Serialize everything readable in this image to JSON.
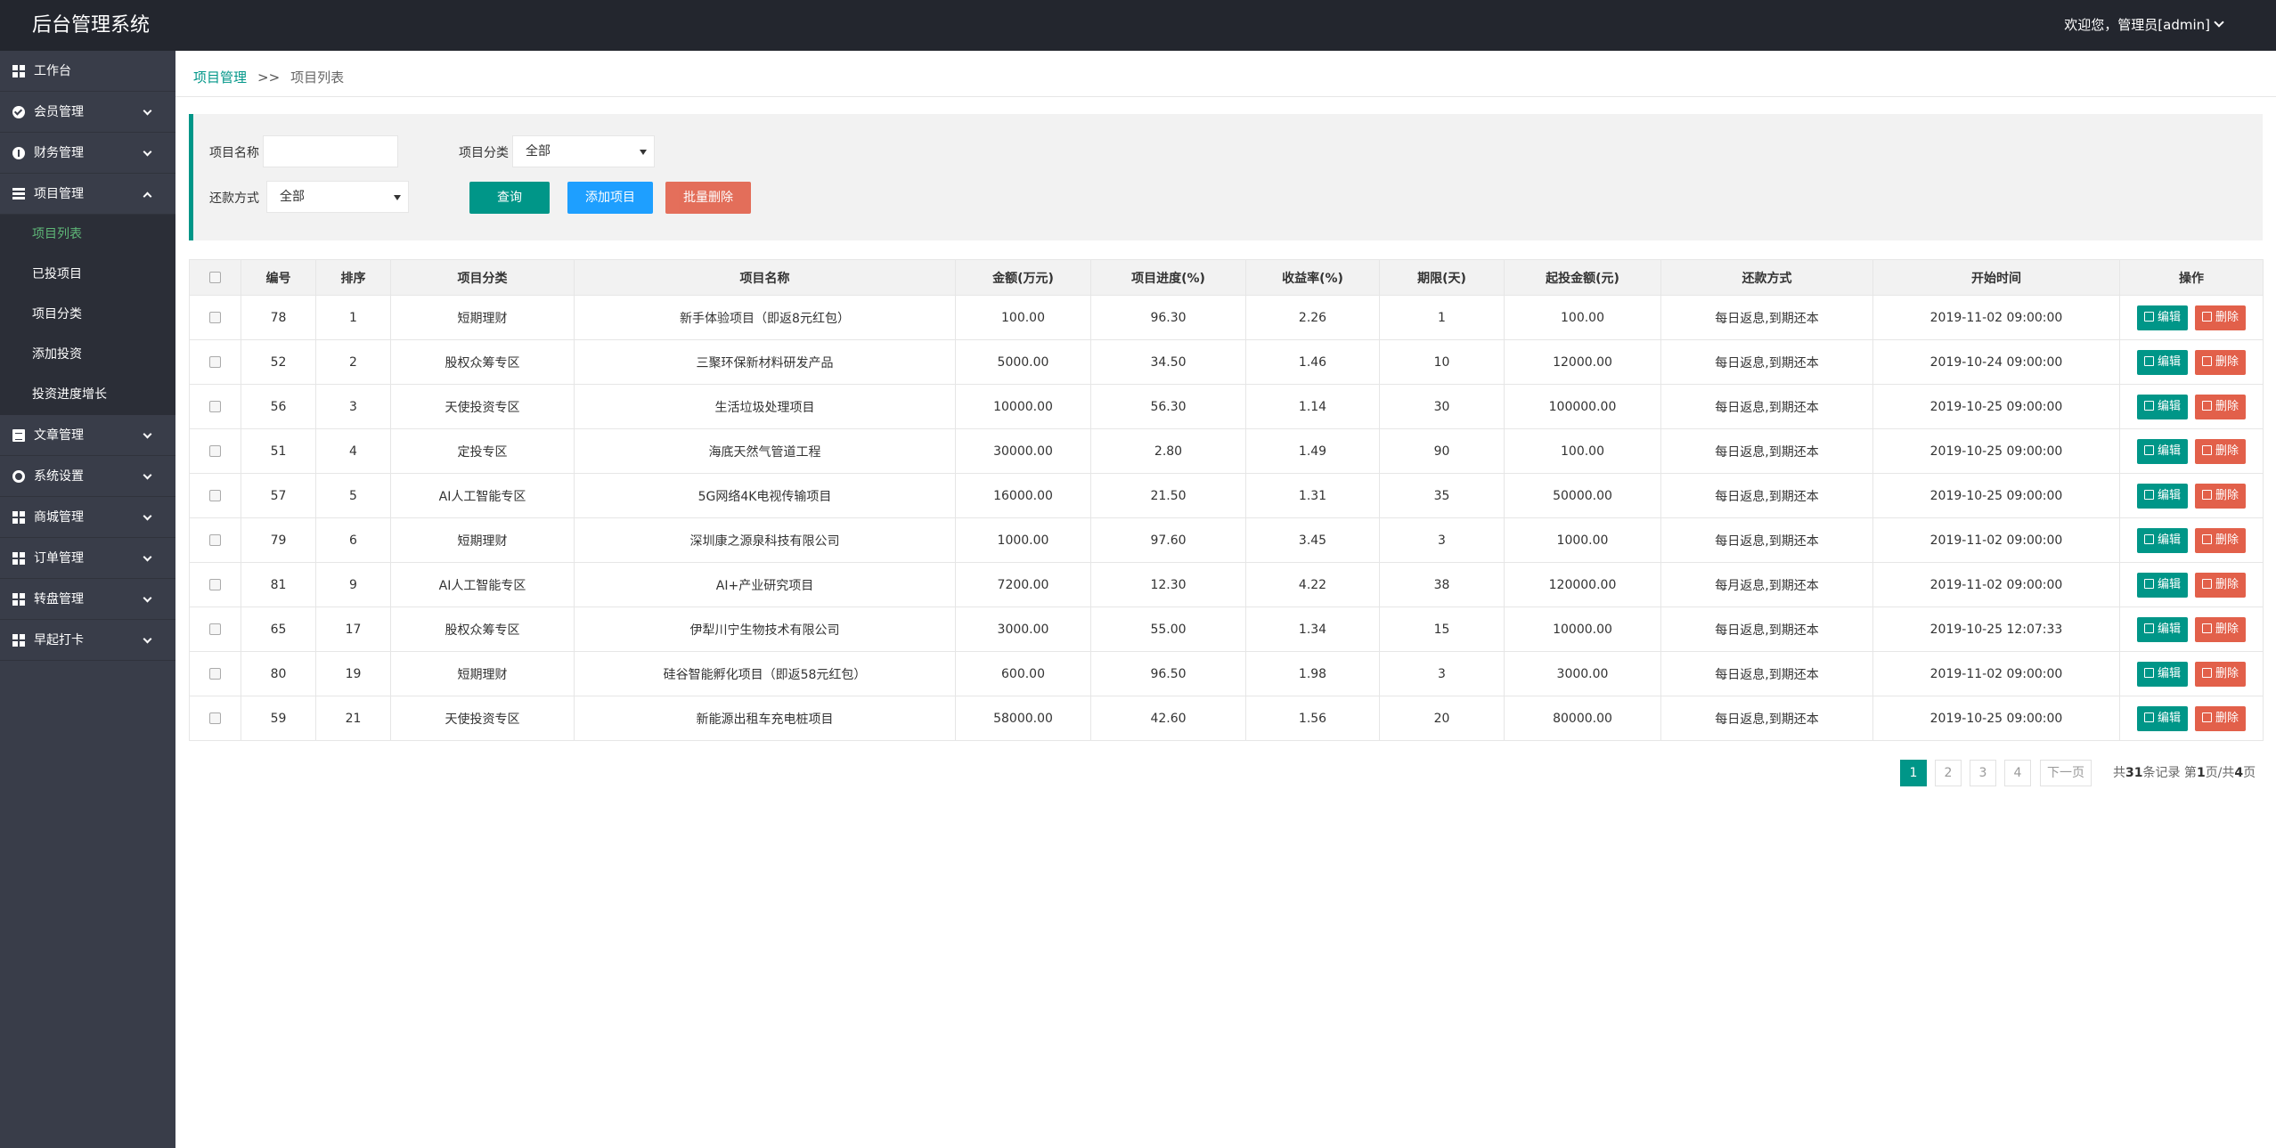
{
  "header": {
    "title": "后台管理系统",
    "user": "欢迎您，管理员[admin]"
  },
  "sidebar": {
    "items": [
      {
        "label": "工作台",
        "icon": "dashboard-icon"
      },
      {
        "label": "会员管理",
        "icon": "member-icon"
      },
      {
        "label": "财务管理",
        "icon": "finance-icon"
      },
      {
        "label": "项目管理",
        "icon": "project-icon"
      },
      {
        "label": "文章管理",
        "icon": "article-icon"
      },
      {
        "label": "系统设置",
        "icon": "gear-icon"
      },
      {
        "label": "商城管理",
        "icon": "shop-icon"
      },
      {
        "label": "订单管理",
        "icon": "order-icon"
      },
      {
        "label": "转盘管理",
        "icon": "wheel-icon"
      },
      {
        "label": "早起打卡",
        "icon": "checkin-icon"
      }
    ],
    "project_sub": [
      "项目列表",
      "已投项目",
      "项目分类",
      "添加投资",
      "投资进度增长"
    ]
  },
  "breadcrumb": {
    "parent": "项目管理",
    "separator": ">>",
    "current": "项目列表"
  },
  "filter": {
    "name_label": "项目名称",
    "name_value": "",
    "category_label": "项目分类",
    "category_value": "全部",
    "repay_label": "还款方式",
    "repay_value": "全部",
    "query_button": "查询",
    "add_button": "添加项目",
    "batch_delete_button": "批量删除"
  },
  "table": {
    "headers": [
      "编号",
      "排序",
      "项目分类",
      "项目名称",
      "金额(万元)",
      "项目进度(%)",
      "收益率(%)",
      "期限(天)",
      "起投金额(元)",
      "还款方式",
      "开始时间",
      "操作"
    ],
    "edit_label": "编辑",
    "delete_label": "删除",
    "rows": [
      [
        "78",
        "1",
        "短期理财",
        "新手体验项目（即返8元红包）",
        "100.00",
        "96.30",
        "2.26",
        "1",
        "100.00",
        "每日返息,到期还本",
        "2019-11-02 09:00:00"
      ],
      [
        "52",
        "2",
        "股权众筹专区",
        "三聚环保新材料研发产品",
        "5000.00",
        "34.50",
        "1.46",
        "10",
        "12000.00",
        "每日返息,到期还本",
        "2019-10-24 09:00:00"
      ],
      [
        "56",
        "3",
        "天使投资专区",
        "生活垃圾处理项目",
        "10000.00",
        "56.30",
        "1.14",
        "30",
        "100000.00",
        "每日返息,到期还本",
        "2019-10-25 09:00:00"
      ],
      [
        "51",
        "4",
        "定投专区",
        "海底天然气管道工程",
        "30000.00",
        "2.80",
        "1.49",
        "90",
        "100.00",
        "每日返息,到期还本",
        "2019-10-25 09:00:00"
      ],
      [
        "57",
        "5",
        "AI人工智能专区",
        "5G网络4K电视传输项目",
        "16000.00",
        "21.50",
        "1.31",
        "35",
        "50000.00",
        "每日返息,到期还本",
        "2019-10-25 09:00:00"
      ],
      [
        "79",
        "6",
        "短期理财",
        "深圳康之源泉科技有限公司",
        "1000.00",
        "97.60",
        "3.45",
        "3",
        "1000.00",
        "每日返息,到期还本",
        "2019-11-02 09:00:00"
      ],
      [
        "81",
        "9",
        "AI人工智能专区",
        "AI+产业研究项目",
        "7200.00",
        "12.30",
        "4.22",
        "38",
        "120000.00",
        "每月返息,到期还本",
        "2019-11-02 09:00:00"
      ],
      [
        "65",
        "17",
        "股权众筹专区",
        "伊犁川宁生物技术有限公司",
        "3000.00",
        "55.00",
        "1.34",
        "15",
        "10000.00",
        "每日返息,到期还本",
        "2019-10-25 12:07:33"
      ],
      [
        "80",
        "19",
        "短期理财",
        "硅谷智能孵化项目（即返58元红包）",
        "600.00",
        "96.50",
        "1.98",
        "3",
        "3000.00",
        "每日返息,到期还本",
        "2019-11-02 09:00:00"
      ],
      [
        "59",
        "21",
        "天使投资专区",
        "新能源出租车充电桩项目",
        "58000.00",
        "42.60",
        "1.56",
        "20",
        "80000.00",
        "每日返息,到期还本",
        "2019-10-25 09:00:00"
      ]
    ]
  },
  "pagination": {
    "pages": [
      "1",
      "2",
      "3",
      "4"
    ],
    "current_page": "1",
    "next_label": "下一页",
    "info_prefix": "共",
    "total": "31",
    "info_mid": "条记录 第",
    "page_current": "1",
    "info_mid2": "页/共",
    "page_total": "4",
    "info_suffix": "页"
  },
  "colors": {
    "header_bg": "#23262e",
    "sidebar_bg": "#393d49",
    "accent": "#009688",
    "blue": "#1e9fff",
    "danger": "#e2604a",
    "active_sub": "#5fb878"
  }
}
